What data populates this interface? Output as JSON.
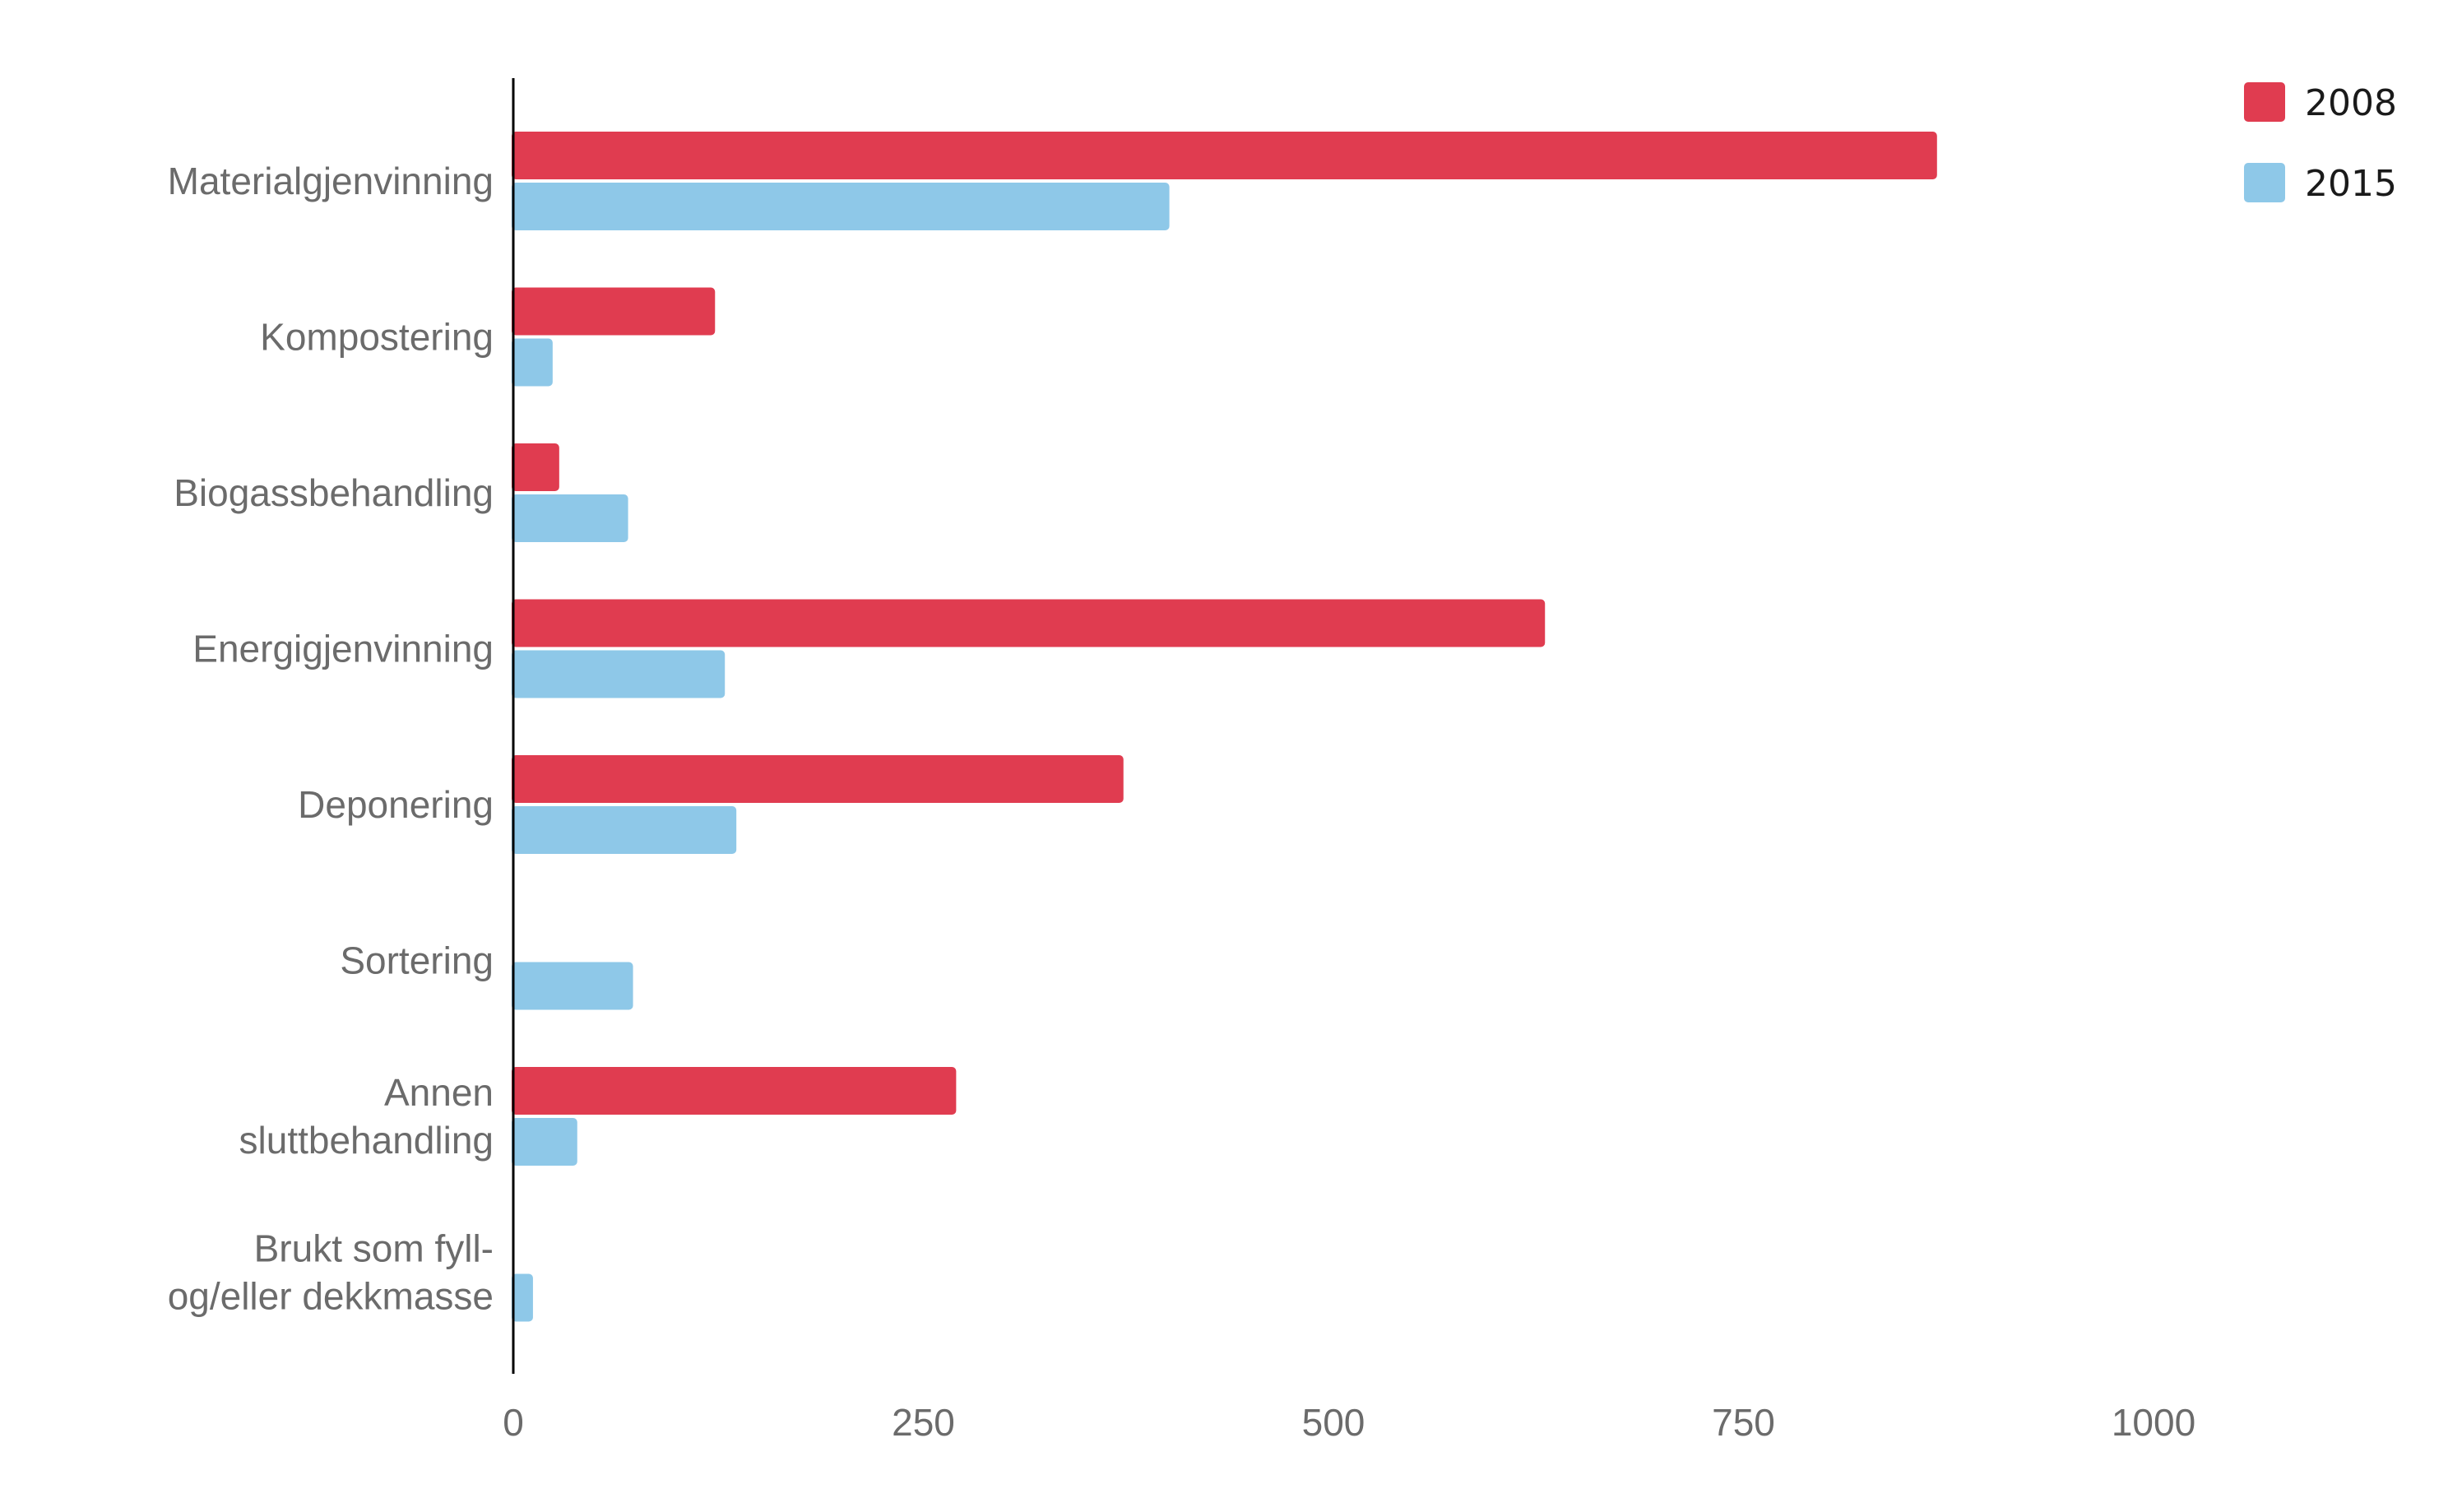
{
  "chart_data": {
    "type": "bar",
    "orientation": "horizontal",
    "categories": [
      [
        "Materialgjenvinning"
      ],
      [
        "Kompostering"
      ],
      [
        "Biogassbehandling"
      ],
      [
        "Energigjenvinning"
      ],
      [
        "Deponering"
      ],
      [
        "Sortering"
      ],
      [
        "Annen",
        "sluttbehandling"
      ],
      [
        "Brukt som fyll-",
        "og/eller dekkmasse"
      ]
    ],
    "series": [
      {
        "name": "2008",
        "color": "#e03c50",
        "values": [
          868,
          123,
          28,
          629,
          372,
          null,
          270,
          null
        ]
      },
      {
        "name": "2015",
        "color": "#8ec8e8",
        "values": [
          400,
          24,
          70,
          129,
          136,
          73,
          39,
          12
        ]
      }
    ],
    "xlim": [
      0,
      1000
    ],
    "xticks": [
      "0",
      "250",
      "500",
      "750",
      "1000"
    ],
    "grid": false,
    "legend_position": "top-right"
  }
}
